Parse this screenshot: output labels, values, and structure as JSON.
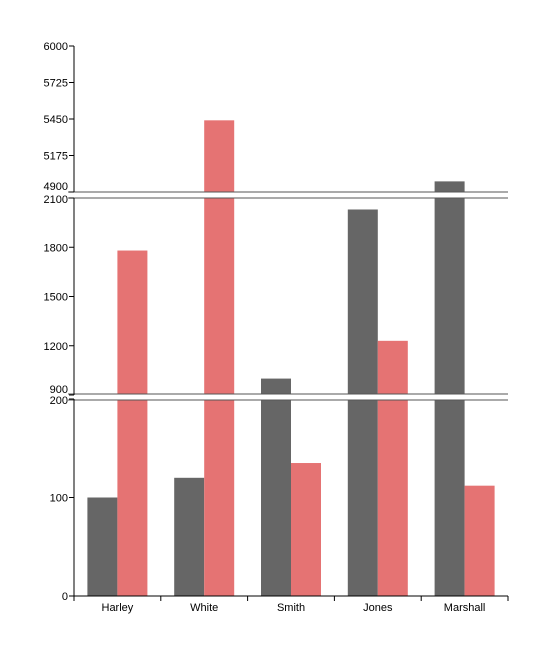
{
  "chart_data": {
    "type": "bar",
    "categories": [
      "Harley",
      "White",
      "Smith",
      "Jones",
      "Marshall"
    ],
    "series": [
      {
        "color": "#666666",
        "values": [
          100,
          120,
          1000,
          2030,
          4980
        ]
      },
      {
        "color": "#e57373",
        "values": [
          1780,
          5440,
          135,
          1230,
          112
        ]
      }
    ],
    "title": "",
    "xlabel": "",
    "ylabel": "",
    "y_axis_breaks": true,
    "segments": [
      {
        "ylim": [
          4900,
          6000
        ],
        "ticks": [
          "4900",
          "5175",
          "5450",
          "5725",
          "6000"
        ]
      },
      {
        "ylim": [
          900,
          2100
        ],
        "ticks": [
          "900",
          "1200",
          "1500",
          "1800",
          "2100"
        ]
      },
      {
        "ylim": [
          0,
          200
        ],
        "ticks": [
          "0",
          "100",
          "200"
        ]
      }
    ],
    "grid": false,
    "legend": "none"
  }
}
